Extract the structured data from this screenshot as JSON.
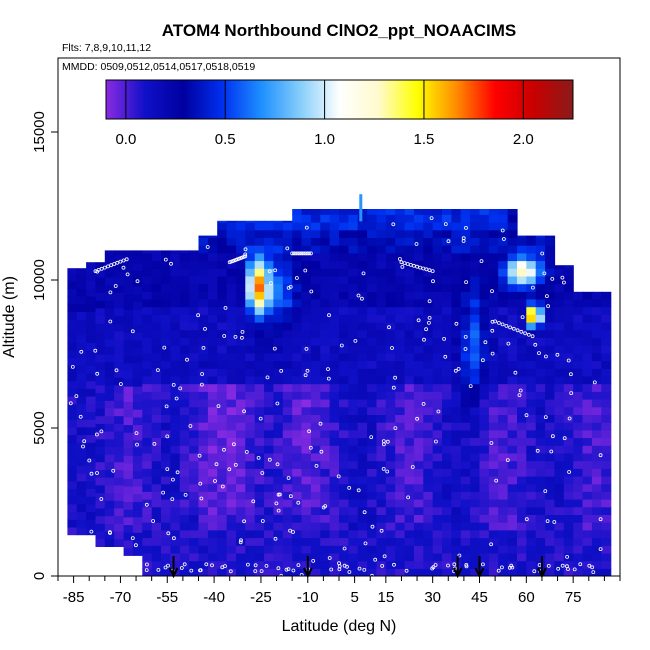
{
  "chart_data": {
    "type": "heatmap",
    "title": "ATOM4 Northbound ClNO2_ppt_NOAACIMS",
    "subtitle_flights": "Flts: 7,8,9,10,11,12",
    "subtitle_dates": "MMDD: 0509,0512,0514,0517,0518,0519",
    "xlabel": "Latitude (deg N)",
    "ylabel": "Altitude (m)",
    "xlim": [
      -90,
      90
    ],
    "ylim": [
      0,
      17500
    ],
    "x_ticks": [
      -85,
      -70,
      -55,
      -40,
      -25,
      -10,
      5,
      15,
      30,
      45,
      60,
      75
    ],
    "y_ticks": [
      0,
      5000,
      10000,
      15000
    ],
    "colorbar": {
      "min": -0.1,
      "max": 2.25,
      "ticks": [
        0.0,
        0.5,
        1.0,
        1.5,
        2.0
      ],
      "tick_labels": [
        "0.0",
        "0.5",
        "1.0",
        "1.5",
        "2.0"
      ],
      "colors": [
        "#8a2be2",
        "#1010c8",
        "#0000a0",
        "#0030f0",
        "#1e90ff",
        "#87cefa",
        "#ffffff",
        "#fffacd",
        "#ffff00",
        "#ff8c00",
        "#ff0000",
        "#c80000",
        "#8b1a1a"
      ]
    },
    "arrow_latitudes": [
      -53,
      -10,
      38,
      45,
      65
    ],
    "grid": false,
    "legend": "colorbar top"
  }
}
